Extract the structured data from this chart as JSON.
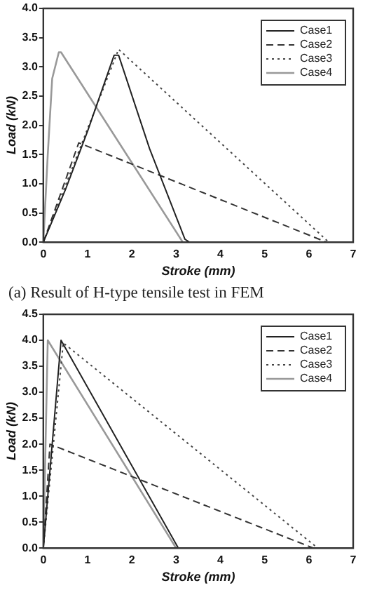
{
  "chart_data": [
    {
      "type": "line",
      "xlabel": "Stroke (mm)",
      "ylabel": "Load (kN)",
      "xlim": [
        0,
        7
      ],
      "xticks": [
        0,
        1,
        2,
        3,
        4,
        5,
        6,
        7
      ],
      "ylim": [
        0,
        4
      ],
      "yticks": [
        {
          "value": 0,
          "label": "0.0"
        },
        0.5,
        {
          "value": 1,
          "label": "1.0"
        },
        1.5,
        {
          "value": 2,
          "label": "2.0"
        },
        2.5,
        {
          "value": 3,
          "label": "3.0"
        },
        3.5,
        {
          "value": 4,
          "label": "4.0"
        }
      ],
      "legend": "top right",
      "marker": "none",
      "grid": false,
      "annotations": [
        "(a) Result of H-type tensile test in FEM"
      ],
      "series": [
        {
          "name": "Case1",
          "color": "#222222",
          "line_style": "solid",
          "x": [
            0,
            0.5,
            1,
            1.6,
            1.7,
            2.4,
            3.2,
            3.3
          ],
          "values": [
            0,
            0.9,
            1.9,
            3.2,
            3.2,
            1.6,
            0.05,
            0
          ]
        },
        {
          "name": "Case2",
          "color": "#333333",
          "line_style": "dashed",
          "x": [
            0,
            0.8,
            6.4
          ],
          "values": [
            0,
            1.7,
            0
          ]
        },
        {
          "name": "Case3",
          "color": "#444444",
          "line_style": "dotted",
          "x": [
            0,
            1.7,
            6.45
          ],
          "values": [
            0,
            3.3,
            0
          ]
        },
        {
          "name": "Case4",
          "color": "#999999",
          "line_style": "solid",
          "x": [
            0,
            0.1,
            0.2,
            0.35,
            0.4,
            3.15
          ],
          "values": [
            0,
            1.5,
            2.8,
            3.25,
            3.25,
            0
          ]
        }
      ]
    },
    {
      "type": "line",
      "xlabel": "Stroke (mm)",
      "ylabel": "Load (kN)",
      "xlim": [
        0,
        7
      ],
      "xticks": [
        0,
        1,
        2,
        3,
        4,
        5,
        6,
        7
      ],
      "ylim": [
        0,
        4.5
      ],
      "yticks": [
        {
          "value": 0,
          "label": "0.0"
        },
        0.5,
        {
          "value": 1,
          "label": "1.0"
        },
        1.5,
        {
          "value": 2,
          "label": "2.0"
        },
        2.5,
        {
          "value": 3,
          "label": "3.0"
        },
        3.5,
        {
          "value": 4,
          "label": "4.0"
        },
        4.5
      ],
      "legend": "top right",
      "marker": "none",
      "grid": false,
      "series": [
        {
          "name": "Case1",
          "color": "#222222",
          "line_style": "solid",
          "x": [
            0,
            0.4,
            3.05
          ],
          "values": [
            0,
            4.0,
            0
          ]
        },
        {
          "name": "Case2",
          "color": "#333333",
          "line_style": "dashed",
          "x": [
            0,
            0.15,
            6.1
          ],
          "values": [
            0,
            2.0,
            0
          ]
        },
        {
          "name": "Case3",
          "color": "#444444",
          "line_style": "dotted",
          "x": [
            0,
            0.45,
            6.2
          ],
          "values": [
            0,
            3.95,
            0
          ]
        },
        {
          "name": "Case4",
          "color": "#999999",
          "line_style": "solid",
          "x": [
            0,
            0.1,
            3.0
          ],
          "values": [
            0,
            4.0,
            0
          ]
        }
      ]
    }
  ]
}
